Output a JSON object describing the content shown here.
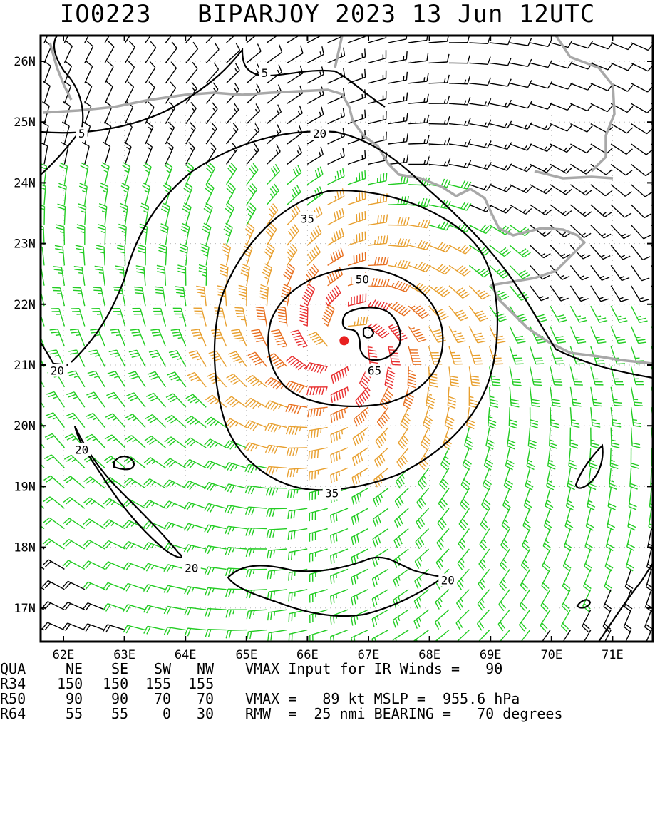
{
  "header": {
    "storm_id": "IO0223",
    "title": "BIPARJOY 2023 13 Jun 12UTC"
  },
  "map": {
    "lon_labels": [
      "62E",
      "63E",
      "64E",
      "65E",
      "66E",
      "67E",
      "68E",
      "69E",
      "70E",
      "71E"
    ],
    "lat_labels": [
      "26N",
      "25N",
      "24N",
      "23N",
      "22N",
      "21N",
      "20N",
      "19N",
      "18N",
      "17N"
    ],
    "storm_center": {
      "lon": 66.6,
      "lat": 21.4
    },
    "wind_colors": {
      "under_20": "#000000",
      "20_to_35": "#22cc22",
      "35_to_50": "#e8a030",
      "50_to_65": "#e87020",
      "over_65": "#e83030"
    },
    "coast_color": "#a8a8a8",
    "contour_labels": [
      {
        "text": "5",
        "lon": 65.3,
        "lat": 25.8
      },
      {
        "text": "5",
        "lon": 62.3,
        "lat": 24.8
      },
      {
        "text": "20",
        "lon": 66.2,
        "lat": 24.8
      },
      {
        "text": "20",
        "lon": 61.9,
        "lat": 20.9
      },
      {
        "text": "20",
        "lon": 62.3,
        "lat": 19.6
      },
      {
        "text": "20",
        "lon": 64.1,
        "lat": 17.65
      },
      {
        "text": "20",
        "lon": 68.3,
        "lat": 17.45
      },
      {
        "text": "35",
        "lon": 66.0,
        "lat": 23.4
      },
      {
        "text": "35",
        "lon": 66.4,
        "lat": 18.88
      },
      {
        "text": "50",
        "lon": 66.9,
        "lat": 22.4
      },
      {
        "text": "65",
        "lon": 67.1,
        "lat": 20.9
      }
    ]
  },
  "table": {
    "header": [
      "QUA",
      "NE",
      "SE",
      "SW",
      "NW"
    ],
    "rows": [
      [
        "R34",
        "150",
        "150",
        "155",
        "155"
      ],
      [
        "R50",
        "90",
        "90",
        "70",
        "70"
      ],
      [
        "R64",
        "55",
        "55",
        "0",
        "30"
      ]
    ]
  },
  "info": {
    "line1": "VMAX Input for IR Winds =   90",
    "line2": "VMAX =   89 kt MSLP =  955.6 hPa",
    "line3": "RMW  =  25 nmi BEARING =   70 degrees"
  }
}
